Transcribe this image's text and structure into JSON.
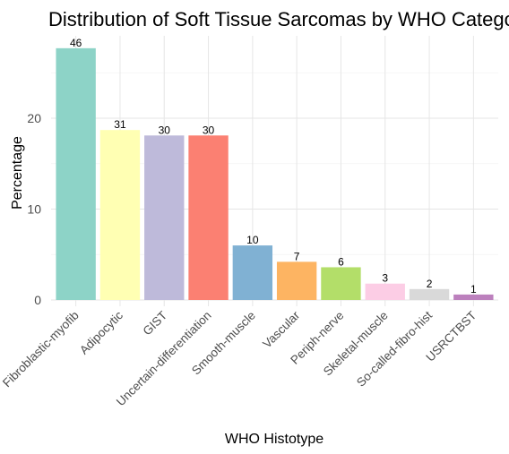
{
  "chart_data": {
    "type": "bar",
    "title": "Distribution of Soft Tissue Sarcomas by WHO Catego",
    "xlabel": "WHO Histotype",
    "ylabel": "Percentage",
    "categories": [
      "Fibroblastic-myofib",
      "Adipocytic",
      "GIST",
      "Uncertain-differentiation",
      "Smooth-muscle",
      "Vascular",
      "Periph-nerve",
      "Skeletal-muscle",
      "So-called-fibro-hist",
      "USRCTBST"
    ],
    "values": [
      27.7,
      18.7,
      18.1,
      18.1,
      6.0,
      4.2,
      3.6,
      1.8,
      1.2,
      0.6
    ],
    "data_labels": [
      "46",
      "31",
      "30",
      "30",
      "10",
      "7",
      "6",
      "3",
      "2",
      "1"
    ],
    "colors": [
      "#8DD3C7",
      "#FFFFB3",
      "#BEBADA",
      "#FB8072",
      "#80B1D3",
      "#FDB462",
      "#B3DE69",
      "#FCCDE5",
      "#D9D9D9",
      "#BC80BD"
    ],
    "yticks": [
      0,
      10,
      20
    ],
    "ylim": [
      0,
      29.2
    ],
    "grid": true,
    "legend": "none"
  }
}
